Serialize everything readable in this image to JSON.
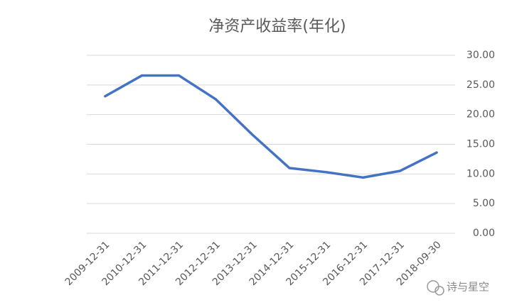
{
  "chart_data": {
    "type": "line",
    "title": "净资产收益率(年化)",
    "categories": [
      "2009-12-31",
      "2010-12-31",
      "2011-12-31",
      "2012-12-31",
      "2013-12-31",
      "2014-12-31",
      "2015-12-31",
      "2016-12-31",
      "2017-12-31",
      "2018-09-30"
    ],
    "values": [
      23.1,
      26.6,
      26.6,
      22.6,
      16.6,
      11.0,
      10.3,
      9.4,
      10.5,
      13.6
    ],
    "color": "#4472c4",
    "ylim": [
      0,
      30
    ],
    "yticks": [
      {
        "value": 0,
        "label": "0.00"
      },
      {
        "value": 5,
        "label": "5.00"
      },
      {
        "value": 10,
        "label": "10.00"
      },
      {
        "value": 15,
        "label": "15.00"
      },
      {
        "value": 20,
        "label": "20.00"
      },
      {
        "value": 25,
        "label": "25.00"
      },
      {
        "value": 30,
        "label": "30.00"
      }
    ],
    "grid": true,
    "y_axis_side": "right"
  },
  "watermark": "诗与星空"
}
